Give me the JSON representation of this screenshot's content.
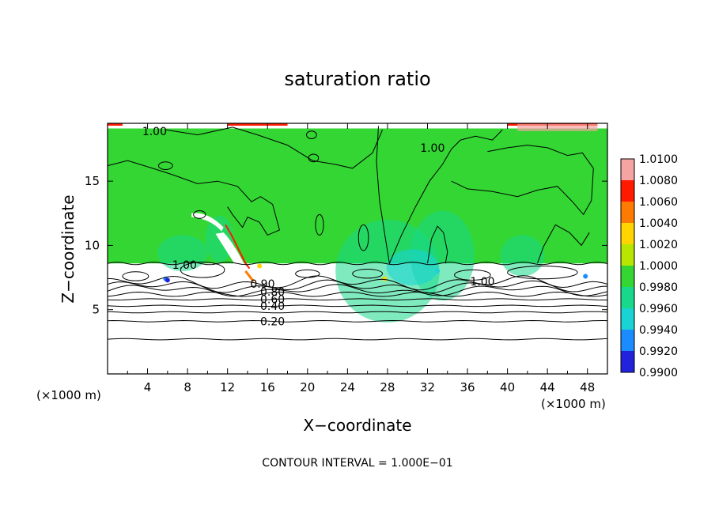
{
  "chart_data": {
    "type": "heatmap",
    "title": "saturation ratio",
    "xlabel": "X−coordinate",
    "ylabel": "Z−coordinate",
    "x_unit": "(×1000 m)",
    "xlim": [
      0,
      50
    ],
    "ylim": [
      0,
      19.5
    ],
    "x_ticks": [
      4,
      8,
      12,
      16,
      20,
      24,
      28,
      32,
      36,
      40,
      44,
      48
    ],
    "y_ticks": [
      5,
      10,
      15
    ],
    "footer": "CONTOUR INTERVAL = 1.000E−01",
    "colorbar": {
      "levels": [
        "1.0100",
        "1.0080",
        "1.0060",
        "1.0040",
        "1.0020",
        "1.0000",
        "0.9980",
        "0.9960",
        "0.9940",
        "0.9920",
        "0.9900"
      ],
      "colors": [
        "#f6a3a3",
        "#ff1a00",
        "#ff7a00",
        "#ffd400",
        "#b8e600",
        "#33d633",
        "#18d88b",
        "#1ad3d3",
        "#1a8cff",
        "#2222dd",
        "#6a0aa8"
      ]
    },
    "contour_labels": [
      {
        "text": "1.00",
        "x": 4.7,
        "z": 18.9
      },
      {
        "text": "1.00",
        "x": 32.5,
        "z": 17.6
      },
      {
        "text": "1.00",
        "x": 7.7,
        "z": 8.5
      },
      {
        "text": "1.00",
        "x": 37.5,
        "z": 7.2
      },
      {
        "text": "0.90",
        "x": 15.5,
        "z": 7.0
      },
      {
        "text": "0.80",
        "x": 16.5,
        "z": 6.4
      },
      {
        "text": "0.60",
        "x": 16.5,
        "z": 5.8
      },
      {
        "text": "0.40",
        "x": 16.5,
        "z": 5.3
      },
      {
        "text": "0.20",
        "x": 16.5,
        "z": 4.1
      }
    ],
    "contour_levels_lower": [
      0.2,
      0.3,
      0.4,
      0.5,
      0.6,
      0.7,
      0.8,
      0.9,
      1.0
    ],
    "contour_heights_lower": [
      2.7,
      4.1,
      4.8,
      5.3,
      5.8,
      6.2,
      6.5,
      6.8,
      7.1
    ],
    "grid": false,
    "legend": "right"
  }
}
